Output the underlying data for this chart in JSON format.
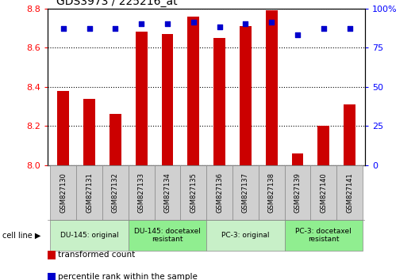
{
  "title": "GDS3973 / 225216_at",
  "samples": [
    "GSM827130",
    "GSM827131",
    "GSM827132",
    "GSM827133",
    "GSM827134",
    "GSM827135",
    "GSM827136",
    "GSM827137",
    "GSM827138",
    "GSM827139",
    "GSM827140",
    "GSM827141"
  ],
  "transformed_count": [
    8.38,
    8.34,
    8.26,
    8.68,
    8.67,
    8.76,
    8.65,
    8.71,
    8.79,
    8.06,
    8.2,
    8.31
  ],
  "percentile_rank": [
    87,
    87,
    87,
    90,
    90,
    91,
    88,
    90,
    91,
    83,
    87,
    87
  ],
  "ylim_left": [
    8.0,
    8.8
  ],
  "ylim_right": [
    0,
    100
  ],
  "yticks_left": [
    8.0,
    8.2,
    8.4,
    8.6,
    8.8
  ],
  "yticks_right": [
    0,
    25,
    50,
    75,
    100
  ],
  "ytick_labels_right": [
    "0",
    "25",
    "50",
    "75",
    "100%"
  ],
  "cell_line_groups": [
    {
      "label": "DU-145: original",
      "start": 0,
      "end": 3,
      "color": "#c8f0c8"
    },
    {
      "label": "DU-145: docetaxel\nresistant",
      "start": 3,
      "end": 6,
      "color": "#90ee90"
    },
    {
      "label": "PC-3: original",
      "start": 6,
      "end": 9,
      "color": "#c8f0c8"
    },
    {
      "label": "PC-3: docetaxel\nresistant",
      "start": 9,
      "end": 12,
      "color": "#90ee90"
    }
  ],
  "cell_line_label": "cell line",
  "bar_color": "#cc0000",
  "dot_color": "#0000cc",
  "bar_width": 0.45,
  "legend_bar_label": "transformed count",
  "legend_dot_label": "percentile rank within the sample",
  "tick_area_bg": "#d0d0d0",
  "plot_bg": "#ffffff",
  "fig_bg": "#ffffff"
}
